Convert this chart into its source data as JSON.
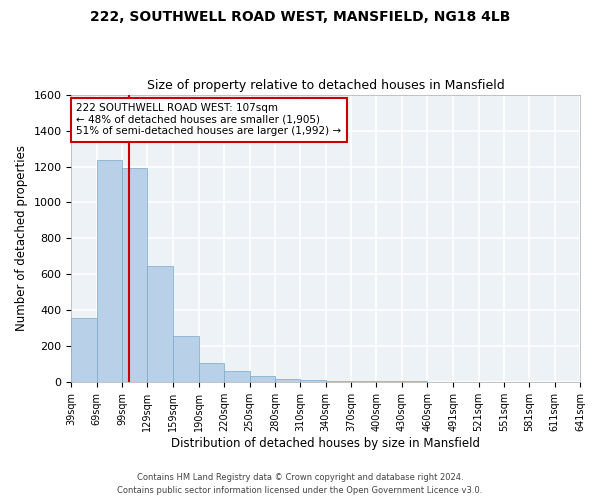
{
  "title1": "222, SOUTHWELL ROAD WEST, MANSFIELD, NG18 4LB",
  "title2": "Size of property relative to detached houses in Mansfield",
  "xlabel": "Distribution of detached houses by size in Mansfield",
  "ylabel": "Number of detached properties",
  "footnote1": "Contains HM Land Registry data © Crown copyright and database right 2024.",
  "footnote2": "Contains public sector information licensed under the Open Government Licence v3.0.",
  "annotation_line1": "222 SOUTHWELL ROAD WEST: 107sqm",
  "annotation_line2": "← 48% of detached houses are smaller (1,905)",
  "annotation_line3": "51% of semi-detached houses are larger (1,992) →",
  "property_size": 107,
  "bar_color": "#b8d0e8",
  "bar_edge_color": "#7aaac8",
  "vline_color": "#cc0000",
  "annotation_box_edge": "#cc0000",
  "background_color": "#edf2f7",
  "grid_color": "#ffffff",
  "ylim": [
    0,
    1600
  ],
  "bin_edges": [
    39,
    69,
    99,
    129,
    159,
    190,
    220,
    250,
    280,
    310,
    340,
    370,
    400,
    430,
    460,
    491,
    521,
    551,
    581,
    611,
    641
  ],
  "bin_labels": [
    "39sqm",
    "69sqm",
    "99sqm",
    "129sqm",
    "159sqm",
    "190sqm",
    "220sqm",
    "250sqm",
    "280sqm",
    "310sqm",
    "340sqm",
    "370sqm",
    "400sqm",
    "430sqm",
    "460sqm",
    "491sqm",
    "521sqm",
    "551sqm",
    "581sqm",
    "611sqm",
    "641sqm"
  ],
  "bar_heights": [
    355,
    1235,
    1190,
    645,
    260,
    110,
    65,
    35,
    20,
    15,
    10,
    5,
    5,
    5,
    0,
    0,
    0,
    0,
    0,
    0
  ]
}
